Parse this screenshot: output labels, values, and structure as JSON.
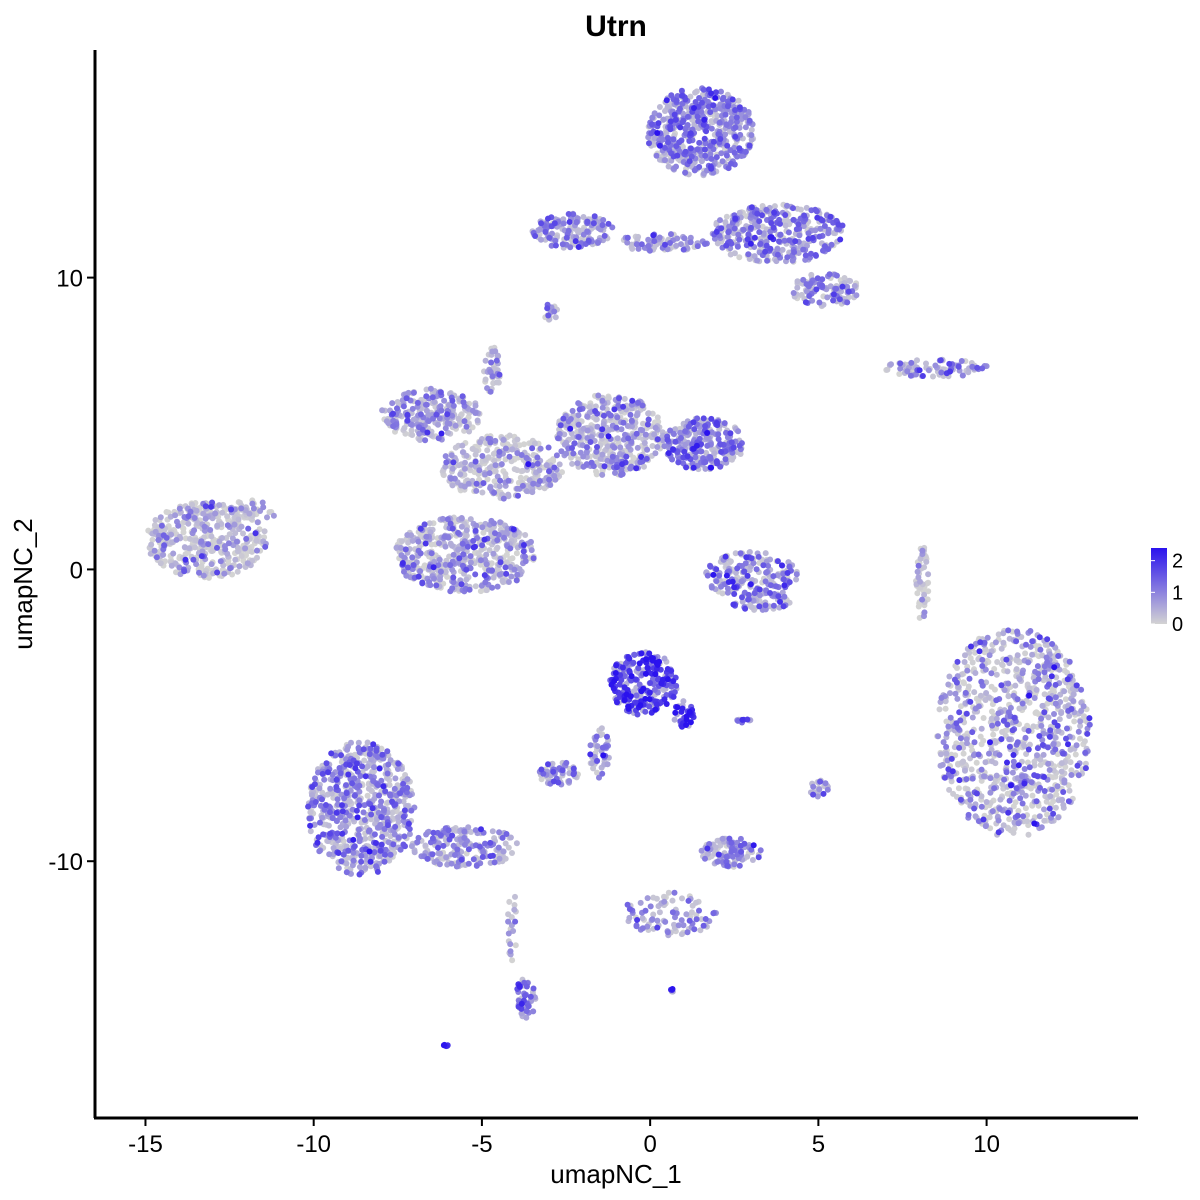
{
  "chart_data": {
    "type": "scatter",
    "title": "Utrn",
    "xlabel": "umapNC_1",
    "ylabel": "umapNC_2",
    "xlim": [
      -16.5,
      14.5
    ],
    "ylim": [
      -18.8,
      17.8
    ],
    "x_ticks": [
      -15,
      -10,
      -5,
      0,
      5,
      10
    ],
    "x_tick_labels": [
      "-15",
      "-10",
      "-5",
      "0",
      "5",
      "10"
    ],
    "y_ticks": [
      -10,
      0,
      10
    ],
    "y_tick_labels": [
      "-10",
      "0",
      "10"
    ],
    "grid": false,
    "color_scale": {
      "low": "#d3d3d3",
      "high": "#2a12ee",
      "range": [
        0,
        2.4
      ],
      "breaks": [
        0,
        1,
        2
      ],
      "break_labels": [
        "0",
        "1",
        "2"
      ],
      "legend_position": "right"
    },
    "clusters": [
      {
        "label": "far-left",
        "cx": -13.2,
        "cy": 1.0,
        "rx": 1.8,
        "ry": 1.3,
        "n": 420,
        "expr": 0.35,
        "spread": 0.6
      },
      {
        "label": "far-left-arm",
        "cx": -11.8,
        "cy": 2.0,
        "rx": 0.7,
        "ry": 0.4,
        "n": 40,
        "expr": 0.4,
        "spread": 0.5
      },
      {
        "label": "center-upper-left",
        "cx": -6.5,
        "cy": 5.3,
        "rx": 1.5,
        "ry": 0.9,
        "n": 230,
        "expr": 0.8,
        "spread": 0.5
      },
      {
        "label": "center-trunk",
        "cx": -4.4,
        "cy": 3.5,
        "rx": 1.8,
        "ry": 1.1,
        "n": 320,
        "expr": 0.5,
        "spread": 0.6
      },
      {
        "label": "center-lower-lobe",
        "cx": -5.5,
        "cy": 0.5,
        "rx": 2.1,
        "ry": 1.3,
        "n": 520,
        "expr": 0.6,
        "spread": 0.6
      },
      {
        "label": "center-right-lobe",
        "cx": -1.2,
        "cy": 4.6,
        "rx": 1.6,
        "ry": 1.4,
        "n": 420,
        "expr": 0.65,
        "spread": 0.6
      },
      {
        "label": "center-right-tip",
        "cx": 1.6,
        "cy": 4.3,
        "rx": 1.2,
        "ry": 0.9,
        "n": 260,
        "expr": 1.1,
        "spread": 0.5
      },
      {
        "label": "center-spike",
        "cx": -4.7,
        "cy": 6.8,
        "rx": 0.25,
        "ry": 0.9,
        "n": 40,
        "expr": 0.7,
        "spread": 0.5
      },
      {
        "label": "small-right-center",
        "cx": 3.0,
        "cy": -0.2,
        "rx": 1.4,
        "ry": 0.8,
        "n": 200,
        "expr": 1.0,
        "spread": 0.6
      },
      {
        "label": "top-large",
        "cx": 1.5,
        "cy": 15.0,
        "rx": 1.6,
        "ry": 1.5,
        "n": 520,
        "expr": 1.1,
        "spread": 0.5
      },
      {
        "label": "top-right-arm",
        "cx": 3.8,
        "cy": 11.5,
        "rx": 2.0,
        "ry": 1.0,
        "n": 380,
        "expr": 1.0,
        "spread": 0.5
      },
      {
        "label": "top-right-tip",
        "cx": 5.2,
        "cy": 9.6,
        "rx": 1.0,
        "ry": 0.6,
        "n": 120,
        "expr": 0.9,
        "spread": 0.5
      },
      {
        "label": "top-left-branch",
        "cx": -2.3,
        "cy": 11.6,
        "rx": 1.2,
        "ry": 0.6,
        "n": 160,
        "expr": 1.0,
        "spread": 0.5
      },
      {
        "label": "top-bridge",
        "cx": 0.3,
        "cy": 11.2,
        "rx": 1.4,
        "ry": 0.3,
        "n": 80,
        "expr": 0.9,
        "spread": 0.5
      },
      {
        "label": "top-small",
        "cx": -3.0,
        "cy": 8.8,
        "rx": 0.3,
        "ry": 0.3,
        "n": 15,
        "expr": 0.9,
        "spread": 0.5
      },
      {
        "label": "right-upper-strip",
        "cx": 8.5,
        "cy": 6.9,
        "rx": 1.6,
        "ry": 0.3,
        "n": 90,
        "expr": 0.9,
        "spread": 0.5
      },
      {
        "label": "right-large",
        "cx": 10.8,
        "cy": -5.6,
        "rx": 2.3,
        "ry": 3.6,
        "n": 900,
        "expr": 0.55,
        "spread": 0.8
      },
      {
        "label": "right-thin",
        "cx": 8.1,
        "cy": -0.5,
        "rx": 0.2,
        "ry": 1.3,
        "n": 50,
        "expr": 0.25,
        "spread": 0.5
      },
      {
        "label": "bottom-center-bright",
        "cx": -0.2,
        "cy": -3.9,
        "rx": 1.0,
        "ry": 1.1,
        "n": 260,
        "expr": 1.8,
        "spread": 0.5
      },
      {
        "label": "bottom-center-tail",
        "cx": 1.0,
        "cy": -5.0,
        "rx": 0.3,
        "ry": 0.5,
        "n": 40,
        "expr": 2.1,
        "spread": 0.4
      },
      {
        "label": "bottom-center-stem",
        "cx": -1.5,
        "cy": -6.3,
        "rx": 0.3,
        "ry": 0.9,
        "n": 45,
        "expr": 1.0,
        "spread": 0.5
      },
      {
        "label": "bottom-center-small",
        "cx": -2.7,
        "cy": -7.0,
        "rx": 0.6,
        "ry": 0.4,
        "n": 60,
        "expr": 0.9,
        "spread": 0.5
      },
      {
        "label": "bottom-left-large",
        "cx": -8.6,
        "cy": -8.2,
        "rx": 1.6,
        "ry": 2.3,
        "n": 650,
        "expr": 1.0,
        "spread": 0.5
      },
      {
        "label": "bottom-left-arm",
        "cx": -5.5,
        "cy": -9.5,
        "rx": 1.6,
        "ry": 0.7,
        "n": 180,
        "expr": 0.9,
        "spread": 0.5
      },
      {
        "label": "bottom-left-tail",
        "cx": -3.7,
        "cy": -14.7,
        "rx": 0.3,
        "ry": 0.7,
        "n": 50,
        "expr": 1.2,
        "spread": 0.5
      },
      {
        "label": "bottom-left-stem",
        "cx": -4.1,
        "cy": -12.2,
        "rx": 0.15,
        "ry": 1.2,
        "n": 20,
        "expr": 0.6,
        "spread": 0.5
      },
      {
        "label": "bottom-mid",
        "cx": 2.4,
        "cy": -9.7,
        "rx": 0.9,
        "ry": 0.5,
        "n": 110,
        "expr": 0.9,
        "spread": 0.5
      },
      {
        "label": "bottom-mid-branch",
        "cx": 0.6,
        "cy": -11.8,
        "rx": 1.4,
        "ry": 0.8,
        "n": 90,
        "expr": 1.0,
        "spread": 0.5
      },
      {
        "label": "bottom-small-right",
        "cx": 5.0,
        "cy": -7.5,
        "rx": 0.3,
        "ry": 0.3,
        "n": 20,
        "expr": 0.8,
        "spread": 0.5
      },
      {
        "label": "bottom-tiny",
        "cx": 2.8,
        "cy": -5.2,
        "rx": 0.3,
        "ry": 0.1,
        "n": 10,
        "expr": 1.4,
        "spread": 0.4
      },
      {
        "label": "bottom-dot",
        "cx": 0.6,
        "cy": -14.4,
        "rx": 0.1,
        "ry": 0.1,
        "n": 5,
        "expr": 2.0,
        "spread": 0.3
      },
      {
        "label": "bottom-far-dot",
        "cx": -6.1,
        "cy": -16.3,
        "rx": 0.1,
        "ry": 0.05,
        "n": 5,
        "expr": 2.2,
        "spread": 0.3
      },
      {
        "label": "small-center-right",
        "cx": 3.3,
        "cy": -1.1,
        "rx": 0.9,
        "ry": 0.3,
        "n": 50,
        "expr": 1.1,
        "spread": 0.5
      }
    ]
  }
}
